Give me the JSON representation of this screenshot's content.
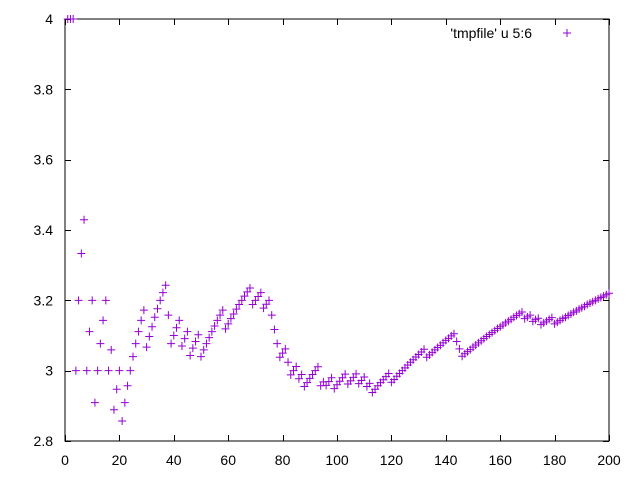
{
  "colors": {
    "series": "#9400d3",
    "axis": "#000000",
    "background": "#ffffff"
  },
  "chart_data": {
    "type": "scatter",
    "title": "",
    "xlabel": "",
    "ylabel": "",
    "xlim": [
      0,
      200
    ],
    "ylim": [
      2.8,
      4.0
    ],
    "grid": false,
    "legend_position": "top-right",
    "x_ticks": [
      0,
      20,
      40,
      60,
      80,
      100,
      120,
      140,
      160,
      180,
      200
    ],
    "x_tick_labels": [
      "0",
      "20",
      "40",
      "60",
      "80",
      "100",
      "120",
      "140",
      "160",
      "180",
      "200"
    ],
    "y_ticks": [
      2.8,
      3.0,
      3.2,
      3.4,
      3.6,
      3.8,
      4.0
    ],
    "y_tick_labels": [
      "2.8",
      "3",
      "3.2",
      "3.4",
      "3.6",
      "3.8",
      "4"
    ],
    "series": [
      {
        "name": "'tmpfile' u 5:6",
        "marker": "+",
        "points": [
          [
            1,
            4.0
          ],
          [
            2,
            4.0
          ],
          [
            3,
            4.0
          ],
          [
            4,
            3.0
          ],
          [
            5,
            3.2
          ],
          [
            6,
            3.333
          ],
          [
            7,
            3.429
          ],
          [
            8,
            3.0
          ],
          [
            9,
            3.111
          ],
          [
            10,
            3.2
          ],
          [
            11,
            2.909
          ],
          [
            12,
            3.0
          ],
          [
            13,
            3.077
          ],
          [
            14,
            3.143
          ],
          [
            15,
            3.2
          ],
          [
            16,
            3.0
          ],
          [
            17,
            3.059
          ],
          [
            18,
            2.889
          ],
          [
            19,
            2.947
          ],
          [
            20,
            3.0
          ],
          [
            21,
            2.857
          ],
          [
            22,
            2.909
          ],
          [
            23,
            2.957
          ],
          [
            24,
            3.0
          ],
          [
            25,
            3.04
          ],
          [
            26,
            3.077
          ],
          [
            27,
            3.111
          ],
          [
            28,
            3.143
          ],
          [
            29,
            3.172
          ],
          [
            30,
            3.067
          ],
          [
            31,
            3.097
          ],
          [
            32,
            3.125
          ],
          [
            33,
            3.152
          ],
          [
            34,
            3.176
          ],
          [
            35,
            3.2
          ],
          [
            36,
            3.222
          ],
          [
            37,
            3.243
          ],
          [
            38,
            3.158
          ],
          [
            39,
            3.077
          ],
          [
            40,
            3.1
          ],
          [
            41,
            3.122
          ],
          [
            42,
            3.143
          ],
          [
            43,
            3.07
          ],
          [
            44,
            3.091
          ],
          [
            45,
            3.111
          ],
          [
            46,
            3.043
          ],
          [
            47,
            3.064
          ],
          [
            48,
            3.083
          ],
          [
            49,
            3.102
          ],
          [
            50,
            3.04
          ],
          [
            51,
            3.059
          ],
          [
            52,
            3.077
          ],
          [
            53,
            3.094
          ],
          [
            54,
            3.111
          ],
          [
            55,
            3.127
          ],
          [
            56,
            3.143
          ],
          [
            57,
            3.158
          ],
          [
            58,
            3.172
          ],
          [
            59,
            3.119
          ],
          [
            60,
            3.133
          ],
          [
            61,
            3.148
          ],
          [
            62,
            3.161
          ],
          [
            63,
            3.175
          ],
          [
            64,
            3.188
          ],
          [
            65,
            3.2
          ],
          [
            66,
            3.212
          ],
          [
            67,
            3.224
          ],
          [
            68,
            3.235
          ],
          [
            69,
            3.188
          ],
          [
            70,
            3.2
          ],
          [
            71,
            3.211
          ],
          [
            72,
            3.222
          ],
          [
            73,
            3.178
          ],
          [
            74,
            3.189
          ],
          [
            75,
            3.2
          ],
          [
            76,
            3.158
          ],
          [
            77,
            3.117
          ],
          [
            78,
            3.077
          ],
          [
            79,
            3.038
          ],
          [
            80,
            3.05
          ],
          [
            81,
            3.062
          ],
          [
            82,
            3.024
          ],
          [
            83,
            2.988
          ],
          [
            84,
            3.0
          ],
          [
            85,
            3.012
          ],
          [
            86,
            2.977
          ],
          [
            87,
            2.989
          ],
          [
            88,
            2.955
          ],
          [
            89,
            2.966
          ],
          [
            90,
            2.978
          ],
          [
            91,
            2.989
          ],
          [
            92,
            3.0
          ],
          [
            93,
            3.011
          ],
          [
            94,
            2.957
          ],
          [
            95,
            2.968
          ],
          [
            96,
            2.958
          ],
          [
            97,
            2.969
          ],
          [
            98,
            2.98
          ],
          [
            99,
            2.949
          ],
          [
            100,
            2.96
          ],
          [
            101,
            2.97
          ],
          [
            102,
            2.98
          ],
          [
            103,
            2.99
          ],
          [
            104,
            2.962
          ],
          [
            105,
            2.971
          ],
          [
            106,
            2.981
          ],
          [
            107,
            2.991
          ],
          [
            108,
            2.963
          ],
          [
            109,
            2.972
          ],
          [
            110,
            2.982
          ],
          [
            111,
            2.955
          ],
          [
            112,
            2.964
          ],
          [
            113,
            2.938
          ],
          [
            114,
            2.947
          ],
          [
            115,
            2.957
          ],
          [
            116,
            2.966
          ],
          [
            117,
            2.974
          ],
          [
            118,
            2.983
          ],
          [
            119,
            2.992
          ],
          [
            120,
            2.967
          ],
          [
            121,
            2.975
          ],
          [
            122,
            2.984
          ],
          [
            123,
            2.992
          ],
          [
            124,
            3.0
          ],
          [
            125,
            3.008
          ],
          [
            126,
            3.016
          ],
          [
            127,
            3.024
          ],
          [
            128,
            3.031
          ],
          [
            129,
            3.039
          ],
          [
            130,
            3.046
          ],
          [
            131,
            3.053
          ],
          [
            132,
            3.061
          ],
          [
            133,
            3.038
          ],
          [
            134,
            3.045
          ],
          [
            135,
            3.052
          ],
          [
            136,
            3.059
          ],
          [
            137,
            3.066
          ],
          [
            138,
            3.072
          ],
          [
            139,
            3.079
          ],
          [
            140,
            3.086
          ],
          [
            141,
            3.092
          ],
          [
            142,
            3.099
          ],
          [
            143,
            3.105
          ],
          [
            144,
            3.083
          ],
          [
            145,
            3.062
          ],
          [
            146,
            3.041
          ],
          [
            147,
            3.048
          ],
          [
            148,
            3.054
          ],
          [
            149,
            3.06
          ],
          [
            150,
            3.067
          ],
          [
            151,
            3.073
          ],
          [
            152,
            3.079
          ],
          [
            153,
            3.085
          ],
          [
            154,
            3.091
          ],
          [
            155,
            3.097
          ],
          [
            156,
            3.103
          ],
          [
            157,
            3.108
          ],
          [
            158,
            3.114
          ],
          [
            159,
            3.12
          ],
          [
            160,
            3.125
          ],
          [
            161,
            3.13
          ],
          [
            162,
            3.136
          ],
          [
            163,
            3.141
          ],
          [
            164,
            3.146
          ],
          [
            165,
            3.152
          ],
          [
            166,
            3.157
          ],
          [
            167,
            3.162
          ],
          [
            168,
            3.167
          ],
          [
            169,
            3.148
          ],
          [
            170,
            3.153
          ],
          [
            171,
            3.158
          ],
          [
            172,
            3.14
          ],
          [
            173,
            3.145
          ],
          [
            174,
            3.149
          ],
          [
            175,
            3.131
          ],
          [
            176,
            3.136
          ],
          [
            177,
            3.141
          ],
          [
            178,
            3.146
          ],
          [
            179,
            3.151
          ],
          [
            180,
            3.133
          ],
          [
            181,
            3.138
          ],
          [
            182,
            3.143
          ],
          [
            183,
            3.148
          ],
          [
            184,
            3.152
          ],
          [
            185,
            3.157
          ],
          [
            186,
            3.161
          ],
          [
            187,
            3.166
          ],
          [
            188,
            3.17
          ],
          [
            189,
            3.175
          ],
          [
            190,
            3.179
          ],
          [
            191,
            3.183
          ],
          [
            192,
            3.188
          ],
          [
            193,
            3.192
          ],
          [
            194,
            3.196
          ],
          [
            195,
            3.2
          ],
          [
            196,
            3.204
          ],
          [
            197,
            3.208
          ],
          [
            198,
            3.212
          ],
          [
            199,
            3.216
          ],
          [
            200,
            3.22
          ]
        ]
      }
    ]
  }
}
